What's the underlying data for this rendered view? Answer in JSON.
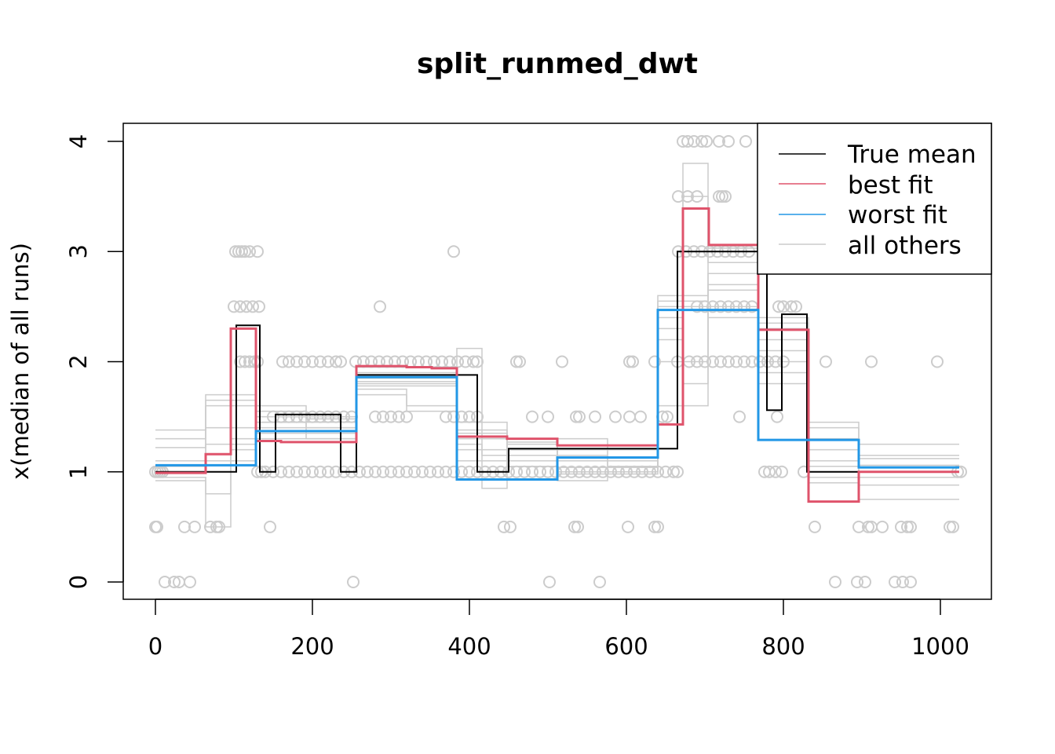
{
  "chart_data": {
    "type": "line",
    "title": "split_runmed_dwt",
    "xlabel": "",
    "ylabel": "x(median of all runs)",
    "xlim": [
      -41,
      1065
    ],
    "ylim": [
      -0.157,
      4.164
    ],
    "xticks": [
      0,
      200,
      400,
      600,
      800,
      1000
    ],
    "yticks": [
      0,
      1,
      2,
      3,
      4
    ],
    "x_end": 1024,
    "grid": false,
    "legend_position": "top-right",
    "legend": [
      {
        "name": "True mean",
        "color": "#000000"
      },
      {
        "name": "best fit",
        "color": "#DF536B"
      },
      {
        "name": "worst fit",
        "color": "#2297E6"
      },
      {
        "name": "all others",
        "color": "#CCCCCC"
      }
    ],
    "series": [
      {
        "name": "True mean",
        "color": "#000000",
        "steps": [
          [
            0,
            1.0
          ],
          [
            103,
            2.33
          ],
          [
            133,
            1.0
          ],
          [
            153,
            1.52
          ],
          [
            236,
            1.0
          ],
          [
            256,
            1.88
          ],
          [
            410,
            1.0
          ],
          [
            450,
            1.21
          ],
          [
            665,
            3.0
          ],
          [
            779,
            1.56
          ],
          [
            798,
            2.43
          ],
          [
            830,
            1.0
          ]
        ]
      },
      {
        "name": "best fit",
        "color": "#DF536B",
        "steps": [
          [
            0,
            0.99
          ],
          [
            64,
            1.16
          ],
          [
            96,
            2.3
          ],
          [
            128,
            1.28
          ],
          [
            160,
            1.27
          ],
          [
            224,
            1.27
          ],
          [
            256,
            1.96
          ],
          [
            320,
            1.95
          ],
          [
            352,
            1.94
          ],
          [
            384,
            1.32
          ],
          [
            448,
            1.3
          ],
          [
            512,
            1.24
          ],
          [
            640,
            1.43
          ],
          [
            672,
            3.39
          ],
          [
            705,
            3.06
          ],
          [
            768,
            2.29
          ],
          [
            832,
            0.73
          ],
          [
            896,
            1.0
          ]
        ]
      },
      {
        "name": "worst fit",
        "color": "#2297E6",
        "steps": [
          [
            0,
            1.06
          ],
          [
            128,
            1.37
          ],
          [
            256,
            1.86
          ],
          [
            384,
            0.93
          ],
          [
            512,
            1.13
          ],
          [
            640,
            2.47
          ],
          [
            768,
            1.29
          ],
          [
            896,
            1.04
          ]
        ]
      }
    ],
    "others": [
      [
        [
          0,
          1.38
        ],
        [
          64,
          1.7
        ],
        [
          128,
          1.45
        ],
        [
          192,
          1.4
        ],
        [
          256,
          1.78
        ],
        [
          384,
          1.3
        ],
        [
          448,
          1.2
        ],
        [
          512,
          1.0
        ],
        [
          640,
          2.6
        ],
        [
          704,
          2.8
        ],
        [
          768,
          2.0
        ],
        [
          832,
          1.4
        ],
        [
          896,
          1.25
        ]
      ],
      [
        [
          0,
          1.22
        ],
        [
          64,
          1.6
        ],
        [
          128,
          1.5
        ],
        [
          256,
          1.8
        ],
        [
          384,
          1.25
        ],
        [
          416,
          0.85
        ],
        [
          448,
          1.1
        ],
        [
          512,
          0.92
        ],
        [
          576,
          1.0
        ],
        [
          640,
          2.3
        ],
        [
          672,
          3.8
        ],
        [
          704,
          2.9
        ],
        [
          768,
          2.4
        ],
        [
          832,
          1.1
        ],
        [
          896,
          1.12
        ]
      ],
      [
        [
          0,
          0.95
        ],
        [
          64,
          0.8
        ],
        [
          96,
          1.3
        ],
        [
          128,
          1.45
        ],
        [
          256,
          1.75
        ],
        [
          320,
          1.55
        ],
        [
          384,
          1.35
        ],
        [
          448,
          1.05
        ],
        [
          512,
          1.3
        ],
        [
          576,
          1.05
        ],
        [
          640,
          2.2
        ],
        [
          672,
          1.8
        ],
        [
          704,
          2.5
        ],
        [
          768,
          2.1
        ],
        [
          832,
          0.95
        ],
        [
          896,
          0.75
        ]
      ],
      [
        [
          0,
          1.1
        ],
        [
          64,
          1.4
        ],
        [
          128,
          1.55
        ],
        [
          192,
          1.3
        ],
        [
          256,
          1.82
        ],
        [
          384,
          2.12
        ],
        [
          416,
          1.15
        ],
        [
          512,
          1.04
        ],
        [
          640,
          2.55
        ],
        [
          704,
          3.0
        ],
        [
          768,
          1.9
        ],
        [
          832,
          1.3
        ],
        [
          896,
          1.0
        ]
      ],
      [
        [
          0,
          1.0
        ],
        [
          64,
          1.25
        ],
        [
          128,
          1.3
        ],
        [
          256,
          1.7
        ],
        [
          320,
          1.6
        ],
        [
          384,
          1.45
        ],
        [
          448,
          1.2
        ],
        [
          512,
          1.15
        ],
        [
          576,
          1.0
        ],
        [
          640,
          2.0
        ],
        [
          704,
          2.65
        ],
        [
          768,
          2.2
        ],
        [
          832,
          1.2
        ],
        [
          896,
          0.88
        ]
      ],
      [
        [
          0,
          0.92
        ],
        [
          64,
          0.5
        ],
        [
          96,
          1.2
        ],
        [
          128,
          1.4
        ],
        [
          256,
          1.9
        ],
        [
          384,
          1.2
        ],
        [
          448,
          1.15
        ],
        [
          512,
          1.1
        ],
        [
          640,
          2.4
        ],
        [
          672,
          3.5
        ],
        [
          704,
          3.03
        ],
        [
          768,
          1.8
        ],
        [
          832,
          1.45
        ],
        [
          896,
          1.06
        ]
      ],
      [
        [
          0,
          1.3
        ],
        [
          64,
          1.65
        ],
        [
          128,
          1.35
        ],
        [
          256,
          1.85
        ],
        [
          384,
          1.38
        ],
        [
          448,
          1.27
        ],
        [
          512,
          0.98
        ],
        [
          640,
          1.6
        ],
        [
          704,
          2.7
        ],
        [
          768,
          2.3
        ],
        [
          832,
          1.05
        ],
        [
          896,
          1.15
        ]
      ],
      [
        [
          0,
          1.05
        ],
        [
          64,
          1.1
        ],
        [
          128,
          1.6
        ],
        [
          192,
          1.48
        ],
        [
          256,
          1.95
        ],
        [
          384,
          1.1
        ],
        [
          448,
          1.25
        ],
        [
          512,
          1.2
        ],
        [
          640,
          2.5
        ],
        [
          704,
          2.4
        ],
        [
          768,
          2.35
        ],
        [
          832,
          0.9
        ],
        [
          896,
          0.95
        ]
      ]
    ],
    "points": [
      {
        "y": 0,
        "x": [
          12,
          24,
          30,
          44,
          252,
          502,
          566,
          866,
          894,
          904,
          942,
          952,
          962
        ]
      },
      {
        "y": 0.5,
        "x": [
          0,
          2,
          37,
          50,
          70,
          78,
          81,
          146,
          444,
          452,
          534,
          538,
          602,
          636,
          640,
          840,
          896,
          908,
          912,
          926,
          950,
          958,
          962,
          1012,
          1016
        ]
      },
      {
        "y": 1,
        "x": [
          0,
          3,
          6,
          9,
          130,
          135,
          140,
          150,
          160,
          170,
          180,
          190,
          200,
          210,
          220,
          230,
          240,
          250,
          260,
          270,
          280,
          290,
          300,
          310,
          320,
          330,
          340,
          350,
          360,
          370,
          380,
          390,
          400,
          410,
          420,
          430,
          440,
          450,
          460,
          470,
          480,
          490,
          500,
          510,
          520,
          530,
          540,
          550,
          560,
          570,
          580,
          590,
          600,
          610,
          620,
          630,
          640,
          650,
          660,
          665,
          776,
          782,
          790,
          798,
          826,
          1022,
          1026
        ]
      },
      {
        "y": 1.5,
        "x": [
          150,
          160,
          170,
          180,
          190,
          200,
          210,
          220,
          230,
          240,
          250,
          280,
          290,
          300,
          310,
          320,
          370,
          380,
          390,
          400,
          410,
          480,
          500,
          536,
          540,
          560,
          586,
          604,
          618,
          646,
          652,
          744,
          792
        ]
      },
      {
        "y": 2,
        "x": [
          108,
          114,
          120,
          126,
          130,
          162,
          170,
          180,
          190,
          200,
          210,
          220,
          230,
          236,
          255,
          265,
          275,
          285,
          295,
          305,
          315,
          325,
          335,
          345,
          355,
          365,
          375,
          385,
          395,
          405,
          410,
          460,
          464,
          518,
          604,
          608,
          636,
          665,
          680,
          690,
          700,
          710,
          720,
          730,
          740,
          750,
          760,
          770,
          780,
          790,
          800,
          854,
          912,
          996
        ]
      },
      {
        "y": 2.5,
        "x": [
          100,
          108,
          116,
          124,
          132,
          286,
          690,
          700,
          710,
          720,
          730,
          740,
          750,
          760,
          794,
          800,
          810,
          816
        ]
      },
      {
        "y": 3,
        "x": [
          102,
          106,
          110,
          114,
          120,
          130,
          380,
          666,
          676,
          686,
          696,
          706,
          716,
          726,
          736,
          746,
          756
        ]
      },
      {
        "y": 3.5,
        "x": [
          666,
          678,
          690,
          718,
          722,
          726
        ]
      },
      {
        "y": 4,
        "x": [
          672,
          678,
          686,
          696,
          702,
          718,
          730,
          752
        ]
      }
    ]
  }
}
